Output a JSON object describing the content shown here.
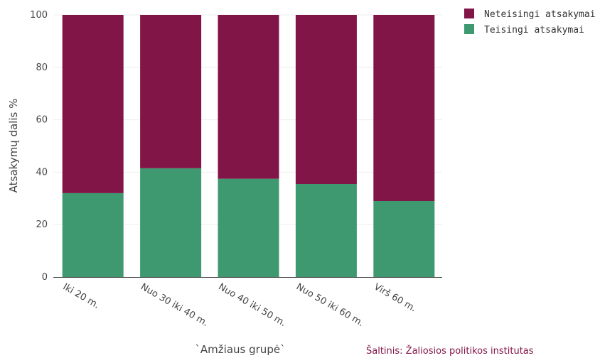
{
  "chart_data": {
    "type": "bar",
    "stacked": true,
    "categories": [
      "Iki 20 m.",
      "Nuo 30 iki 40 m.",
      "Nuo 40 iki 50 m.",
      "Nuo 50 iki 60 m.",
      "Virš 60 m."
    ],
    "series": [
      {
        "name": "Teisingi atsakymai",
        "values": [
          32,
          41.5,
          37.5,
          35.5,
          29
        ],
        "color": "#3e9970"
      },
      {
        "name": "Neteisingi atsakymai",
        "values": [
          68,
          58.5,
          62.5,
          64.5,
          71
        ],
        "color": "#821547"
      }
    ],
    "xlabel": "`Amžiaus grupė`",
    "ylabel": "Atsakymų dalis %",
    "ylim": [
      0,
      100
    ],
    "yticks": [
      0,
      20,
      40,
      60,
      80,
      100
    ],
    "grid": true,
    "legend_position": "top-right",
    "legend_order": [
      "Neteisingi atsakymai",
      "Teisingi atsakymai"
    ]
  },
  "source_note": {
    "text": "Šaltinis: Žaliosios politikos institutas",
    "color": "#821547"
  }
}
